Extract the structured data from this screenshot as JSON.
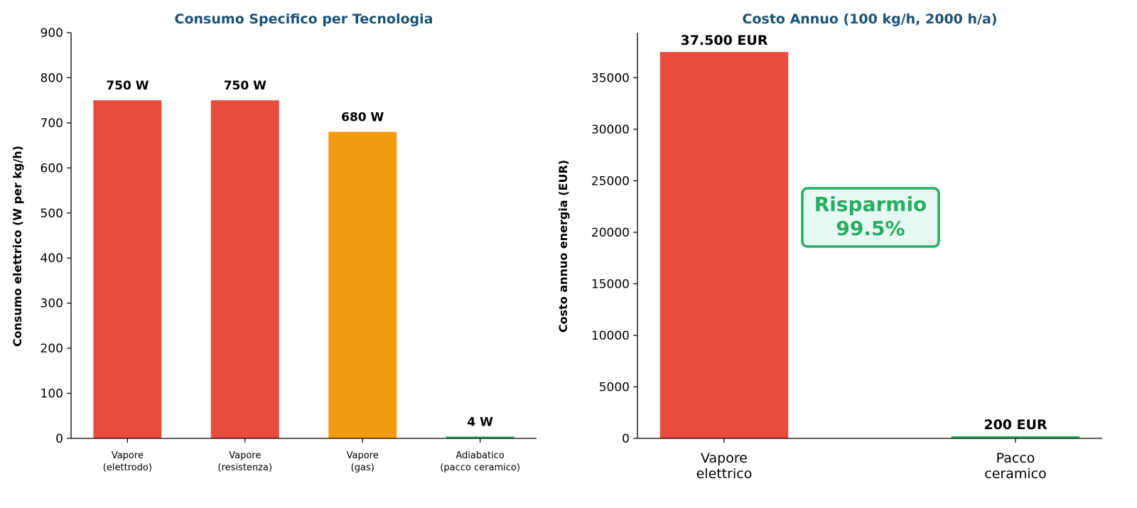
{
  "chart_data": [
    {
      "type": "bar",
      "title": "Consumo Specifico per Tecnologia",
      "xlabel": "",
      "ylabel": "Consumo elettrico (W per kg/h)",
      "categories": [
        "Vapore\n(elettrodo)",
        "Vapore\n(resistenza)",
        "Vapore\n(gas)",
        "Adiabatico\n(pacco ceramico)"
      ],
      "values": [
        750,
        750,
        680,
        4
      ],
      "data_labels": [
        "750 W",
        "750 W",
        "680 W",
        "4 W"
      ],
      "colors": [
        "#e74c3c",
        "#e74c3c",
        "#f39c12",
        "#27ae60"
      ],
      "ylim": [
        0,
        900
      ],
      "yticks": [
        0,
        100,
        200,
        300,
        400,
        500,
        600,
        700,
        800,
        900
      ],
      "grid": false
    },
    {
      "type": "bar",
      "title": "Costo Annuo (100 kg/h, 2000 h/a)",
      "xlabel": "",
      "ylabel": "Costo annuo energia (EUR)",
      "categories": [
        "Vapore\nelettrico",
        "Pacco\nceramico"
      ],
      "values": [
        37500,
        200
      ],
      "data_labels": [
        "37.500 EUR",
        "200 EUR"
      ],
      "colors": [
        "#e74c3c",
        "#27ae60"
      ],
      "ylim": [
        0,
        39375
      ],
      "yticks": [
        0,
        5000,
        10000,
        15000,
        20000,
        25000,
        30000,
        35000
      ],
      "grid": false,
      "annotation": {
        "text": "Risparmio\n99.5%",
        "color": "#27ae60",
        "background": "#e8f8f5"
      }
    }
  ],
  "title_color": "#1a5276"
}
